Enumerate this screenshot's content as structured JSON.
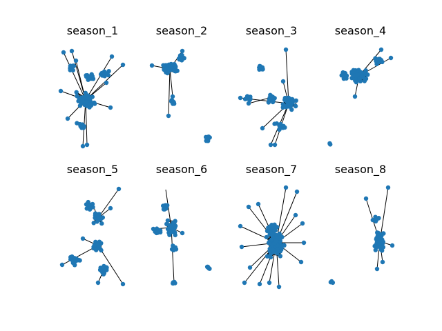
{
  "figure": {
    "node_color": "#1f77b4",
    "edge_color": "#000000",
    "background": "#ffffff",
    "panels": [
      {
        "title": "season_1"
      },
      {
        "title": "season_2"
      },
      {
        "title": "season_3"
      },
      {
        "title": "season_4"
      },
      {
        "title": "season_5"
      },
      {
        "title": "season_6"
      },
      {
        "title": "season_7"
      },
      {
        "title": "season_8"
      }
    ]
  }
}
